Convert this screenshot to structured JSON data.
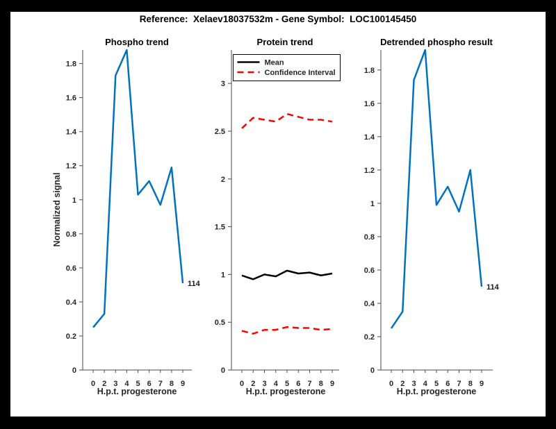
{
  "figure": {
    "title": "Reference:  Xelaev18037532m - Gene Symbol:  LOC100145450",
    "background_color": "#000000",
    "paper_color": "#ffffff"
  },
  "colors": {
    "line_blue": "#0072BD",
    "line_red": "#FF0000",
    "line_black": "#000000",
    "axis_gray": "#4a4a4a",
    "text_dark": "#262626"
  },
  "chart_data": [
    {
      "type": "line",
      "title": "Phospho trend",
      "xlabel": "H.p.t. progesterone",
      "ylabel": "Normalized signal",
      "x_tick_labels": [
        "0",
        "2",
        "3",
        "4",
        "5",
        "6",
        "7",
        "8",
        "9"
      ],
      "y_ticks": [
        0,
        0.2,
        0.4,
        0.6,
        0.8,
        1,
        1.2,
        1.4,
        1.6,
        1.8
      ],
      "ylim": [
        0,
        1.88
      ],
      "grid": false,
      "series": [
        {
          "name": "phospho-signal",
          "color": "#0072BD",
          "dash": null,
          "values": [
            0.25,
            0.33,
            1.73,
            1.88,
            1.03,
            1.11,
            0.97,
            1.19,
            0.51
          ]
        }
      ],
      "annotation": {
        "text": "114"
      }
    },
    {
      "type": "line",
      "title": "Protein trend",
      "xlabel": "H.p.t. progesterone",
      "ylabel": "",
      "x_tick_labels": [
        "0",
        "2",
        "3",
        "4",
        "5",
        "6",
        "7",
        "8",
        "9"
      ],
      "y_ticks": [
        0,
        0.5,
        1,
        1.5,
        2,
        2.5,
        3
      ],
      "ylim": [
        0,
        3.35
      ],
      "grid": false,
      "legend": {
        "position": "top-left",
        "entries": [
          {
            "label": "Mean",
            "color": "#000000",
            "dash": null
          },
          {
            "label": "Confidence Interval",
            "color": "#FF0000",
            "dash": [
              9,
              6
            ]
          }
        ]
      },
      "series": [
        {
          "name": "mean",
          "color": "#000000",
          "dash": null,
          "values": [
            0.99,
            0.95,
            1.0,
            0.98,
            1.04,
            1.01,
            1.02,
            0.99,
            1.01
          ]
        },
        {
          "name": "confidence-upper",
          "color": "#FF0000",
          "dash": [
            9,
            6
          ],
          "values": [
            2.53,
            2.64,
            2.62,
            2.6,
            2.68,
            2.65,
            2.62,
            2.62,
            2.6
          ]
        },
        {
          "name": "confidence-lower",
          "color": "#FF0000",
          "dash": [
            9,
            6
          ],
          "values": [
            0.41,
            0.38,
            0.42,
            0.42,
            0.45,
            0.44,
            0.44,
            0.42,
            0.43
          ]
        }
      ]
    },
    {
      "type": "line",
      "title": "Detrended phospho result",
      "xlabel": "H.p.t. progesterone",
      "ylabel": "",
      "x_tick_labels": [
        "0",
        "2",
        "3",
        "4",
        "5",
        "6",
        "7",
        "8",
        "9"
      ],
      "y_ticks": [
        0,
        0.2,
        0.4,
        0.6,
        0.8,
        1,
        1.2,
        1.4,
        1.6,
        1.8
      ],
      "ylim": [
        0,
        1.92
      ],
      "grid": false,
      "series": [
        {
          "name": "detrended-phospho-signal",
          "color": "#0072BD",
          "dash": null,
          "values": [
            0.25,
            0.35,
            1.74,
            1.92,
            0.99,
            1.1,
            0.95,
            1.2,
            0.5
          ]
        }
      ],
      "annotation": {
        "text": "114"
      }
    }
  ]
}
